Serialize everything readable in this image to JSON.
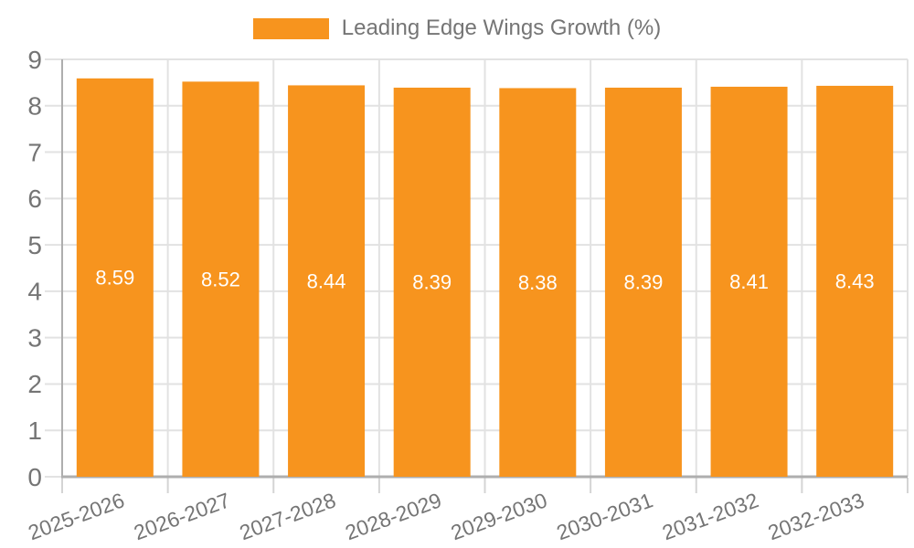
{
  "chart_data": {
    "type": "bar",
    "title": "",
    "series_name": "Leading Edge Wings Growth (%)",
    "categories": [
      "2025-2026",
      "2026-2027",
      "2027-2028",
      "2028-2029",
      "2029-2030",
      "2030-2031",
      "2031-2032",
      "2032-2033"
    ],
    "values": [
      8.59,
      8.52,
      8.44,
      8.39,
      8.38,
      8.39,
      8.41,
      8.43
    ],
    "xlabel": "",
    "ylabel": "",
    "ylim": [
      0,
      9
    ],
    "y_ticks": [
      0,
      1,
      2,
      3,
      4,
      5,
      6,
      7,
      8,
      9
    ],
    "grid": true,
    "legend_position": "top-center",
    "bar_color": "#f7941e",
    "bar_label_color": "#ffffff",
    "grid_color": "#e2e2e2",
    "x_tick_color": "#d4d4d4",
    "axis_color": "#aeaeae",
    "tick_label_color": "#757575",
    "x_tick_rotation_deg": -20
  }
}
